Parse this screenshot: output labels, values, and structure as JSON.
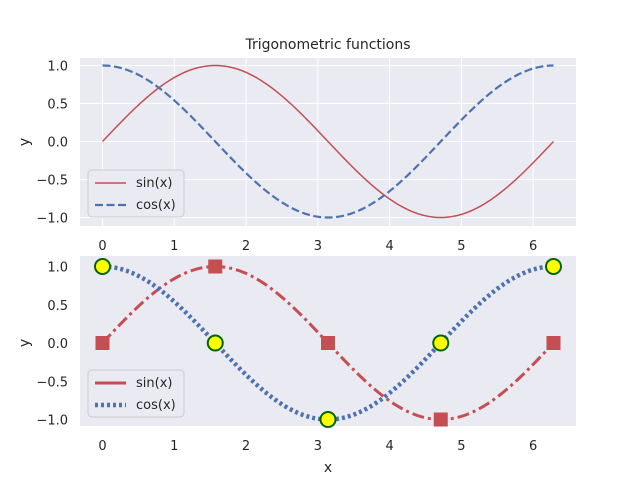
{
  "chart_data": [
    {
      "type": "line",
      "title": "Trigonometric functions",
      "xlabel": "",
      "ylabel": "y",
      "xlim": [
        -0.314,
        6.597
      ],
      "ylim": [
        -1.1,
        1.1
      ],
      "xticks": [
        0,
        1,
        2,
        3,
        4,
        5,
        6
      ],
      "xtick_labels": [
        "0",
        "1",
        "2",
        "3",
        "4",
        "5",
        "6"
      ],
      "yticks": [
        1.0,
        0.5,
        0.0,
        -0.5,
        -1.0
      ],
      "ytick_labels": [
        "1.0",
        "0.5",
        "0.0",
        "−0.5",
        "−1.0"
      ],
      "grid": true,
      "legend": "lower-left",
      "series": [
        {
          "name": "sin(x)",
          "function": "sin",
          "x_range": [
            0,
            6.283
          ],
          "color": "#c44e52",
          "style": "solid"
        },
        {
          "name": "cos(x)",
          "function": "cos",
          "x_range": [
            0,
            6.283
          ],
          "color": "#4c72b0",
          "style": "dashed"
        }
      ]
    },
    {
      "type": "line",
      "title": "",
      "xlabel": "x",
      "ylabel": "y",
      "xlim": [
        -0.314,
        6.597
      ],
      "ylim": [
        -1.1,
        1.1
      ],
      "xticks": [
        0,
        1,
        2,
        3,
        4,
        5,
        6
      ],
      "xtick_labels": [
        "0",
        "1",
        "2",
        "3",
        "4",
        "5",
        "6"
      ],
      "yticks": [
        1.0,
        0.5,
        0.0,
        -0.5,
        -1.0
      ],
      "ytick_labels": [
        "1.0",
        "0.5",
        "0.0",
        "−0.5",
        "−1.0"
      ],
      "grid": false,
      "legend": "lower-left",
      "series": [
        {
          "name": "sin(x)",
          "function": "sin",
          "x_range": [
            0,
            6.283
          ],
          "color": "#c44e52",
          "style": "dashdot",
          "markers": {
            "shape": "square",
            "x": [
              0,
              1.5708,
              3.1416,
              4.7124,
              6.2832
            ],
            "y": [
              0,
              1,
              0,
              -1,
              0
            ]
          }
        },
        {
          "name": "cos(x)",
          "function": "cos",
          "x_range": [
            0,
            6.283
          ],
          "color": "#4c72b0",
          "style": "dotted",
          "markers": {
            "shape": "circle",
            "fill": "#ffff00",
            "edge": "#006400",
            "x": [
              0,
              1.5708,
              3.1416,
              4.7124,
              6.2832
            ],
            "y": [
              1,
              0,
              -1,
              0,
              1
            ]
          }
        }
      ]
    }
  ]
}
